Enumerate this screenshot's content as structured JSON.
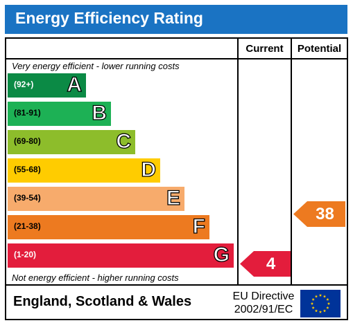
{
  "title": "Energy Efficiency Rating",
  "columns": {
    "current": "Current",
    "potential": "Potential"
  },
  "top_caption": "Very energy efficient - lower running costs",
  "bottom_caption": "Not energy efficient - higher running costs",
  "bands": [
    {
      "letter": "A",
      "range": "(92+)",
      "color": "#0b8a45"
    },
    {
      "letter": "B",
      "range": "(81-91)",
      "color": "#1db155"
    },
    {
      "letter": "C",
      "range": "(69-80)",
      "color": "#8dbd2b"
    },
    {
      "letter": "D",
      "range": "(55-68)",
      "color": "#ffcc00"
    },
    {
      "letter": "E",
      "range": "(39-54)",
      "color": "#f7ab6c"
    },
    {
      "letter": "F",
      "range": "(21-38)",
      "color": "#ed7a20"
    },
    {
      "letter": "G",
      "range": "(1-20)",
      "color": "#e31d3c"
    }
  ],
  "current": {
    "value": "4",
    "band": "G",
    "color": "#e31d3c"
  },
  "potential": {
    "value": "38",
    "band": "F",
    "color": "#ed7a20"
  },
  "footer": {
    "country": "England, Scotland & Wales",
    "directive_line1": "EU Directive",
    "directive_line2": "2002/91/EC",
    "flag_color": "#003399",
    "star_color": "#ffcc00"
  }
}
